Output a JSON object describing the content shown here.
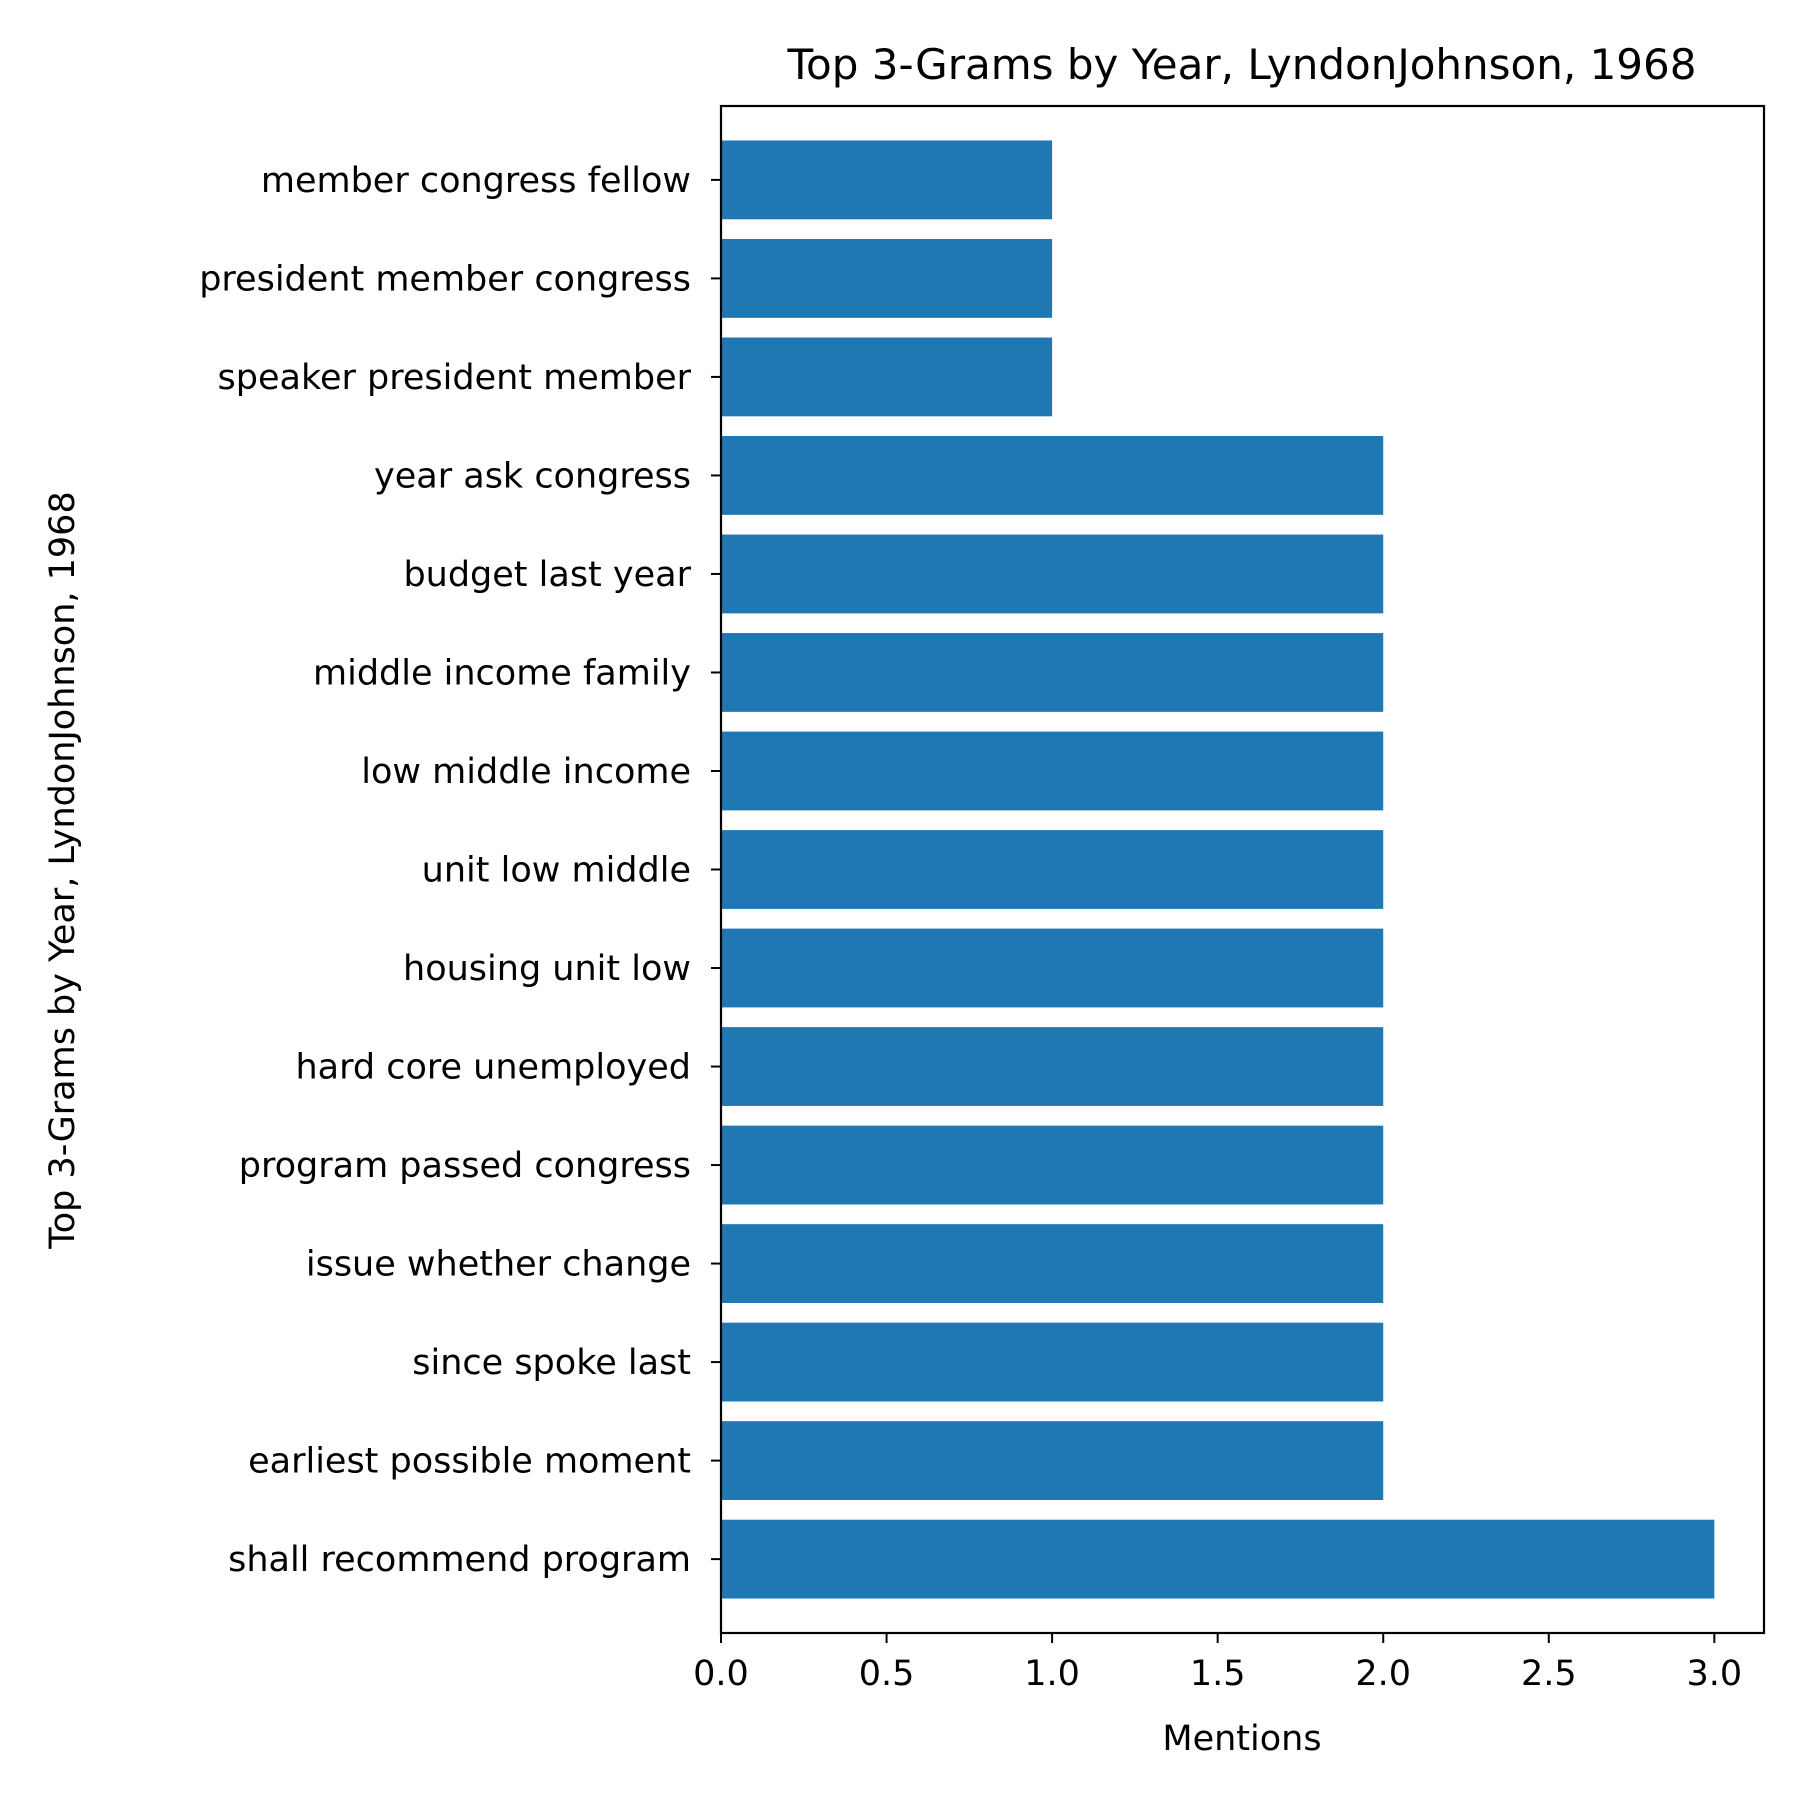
{
  "chart_data": {
    "type": "bar",
    "orientation": "horizontal",
    "title": "Top 3-Grams by Year, LyndonJohnson, 1968",
    "xlabel": "Mentions",
    "ylabel": "Top 3-Grams by Year, LyndonJohnson, 1968",
    "categories": [
      "shall recommend program",
      "earliest possible moment",
      "since spoke last",
      "issue whether change",
      "program passed congress",
      "hard core unemployed",
      "housing unit low",
      "unit low middle",
      "low middle income",
      "middle income family",
      "budget last year",
      "year ask congress",
      "speaker president member",
      "president member congress",
      "member congress fellow"
    ],
    "values": [
      3,
      2,
      2,
      2,
      2,
      2,
      2,
      2,
      2,
      2,
      2,
      2,
      1,
      1,
      1
    ],
    "xlim": [
      0,
      3.15
    ],
    "xticks": [
      "0.0",
      "0.5",
      "1.0",
      "1.5",
      "2.0",
      "2.5",
      "3.0"
    ],
    "bar_color": "#1f77b4",
    "grid": false
  }
}
